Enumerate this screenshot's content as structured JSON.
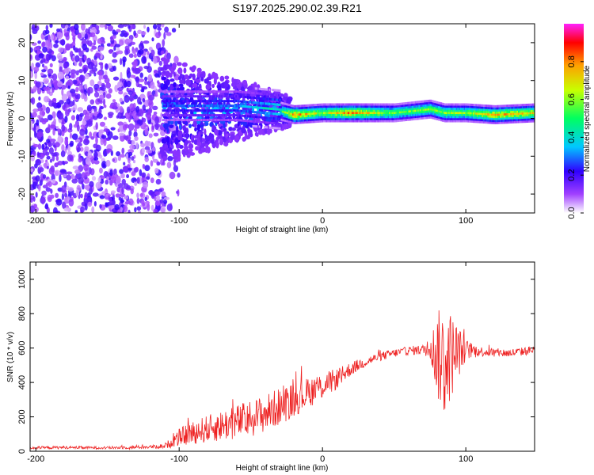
{
  "title": "S197.2025.290.02.39.R21",
  "chart_data": [
    {
      "type": "heatmap",
      "title": "S197.2025.290.02.39.R21",
      "xlabel": "Height of straight line (km)",
      "ylabel": "Frequency (Hz)",
      "xlim": [
        -204,
        148
      ],
      "ylim": [
        -25,
        25
      ],
      "xticks": [
        -200,
        -100,
        0,
        100
      ],
      "yticks": [
        -20,
        -10,
        0,
        10,
        20
      ],
      "colorbar": {
        "label": "Normalized spectral amplitude",
        "range": [
          0,
          1
        ],
        "ticks": [
          "0.0",
          "0.2",
          "0.4",
          "0.6",
          "0.8"
        ],
        "colors": [
          "#ffffff",
          "#a040ff",
          "#3000ff",
          "#00c8ff",
          "#00ff60",
          "#c8ff00",
          "#ffa000",
          "#ff0000",
          "#ff20ff"
        ]
      },
      "ridge": {
        "description": "dominant frequency band",
        "x": [
          -110,
          -60,
          -30,
          -20,
          0,
          20,
          50,
          75,
          85,
          100,
          120,
          148
        ],
        "freq": [
          3,
          3,
          2,
          1,
          1.5,
          1.5,
          1.5,
          2.5,
          1.5,
          1.5,
          1,
          1.5
        ],
        "amplitude": [
          0.25,
          0.3,
          0.45,
          0.8,
          0.6,
          0.8,
          0.55,
          0.6,
          0.6,
          0.6,
          0.75,
          0.7
        ]
      }
    },
    {
      "type": "line",
      "xlabel": "Height of straight line (km)",
      "ylabel": "SNR (10 * v/v)",
      "xlim": [
        -204,
        148
      ],
      "ylim": [
        0,
        1100
      ],
      "xticks": [
        -200,
        -100,
        0,
        100
      ],
      "yticks": [
        0,
        200,
        400,
        600,
        800,
        1000
      ],
      "color": "#ee2222",
      "series": [
        {
          "name": "SNR",
          "x": [
            -204,
            -180,
            -150,
            -120,
            -110,
            -100,
            -90,
            -80,
            -70,
            -60,
            -50,
            -40,
            -30,
            -20,
            -10,
            0,
            10,
            20,
            30,
            40,
            50,
            60,
            70,
            75,
            80,
            85,
            90,
            95,
            100,
            110,
            120,
            130,
            140,
            148
          ],
          "values": [
            20,
            22,
            20,
            25,
            30,
            80,
            110,
            130,
            150,
            170,
            190,
            220,
            260,
            300,
            340,
            380,
            420,
            480,
            520,
            550,
            570,
            585,
            590,
            600,
            560,
            520,
            560,
            580,
            590,
            580,
            575,
            570,
            580,
            590
          ],
          "noise": [
            8,
            8,
            8,
            10,
            15,
            50,
            70,
            80,
            90,
            100,
            110,
            110,
            110,
            100,
            90,
            80,
            60,
            40,
            30,
            25,
            25,
            25,
            30,
            60,
            250,
            350,
            250,
            150,
            60,
            30,
            25,
            25,
            25,
            25
          ]
        }
      ]
    }
  ]
}
